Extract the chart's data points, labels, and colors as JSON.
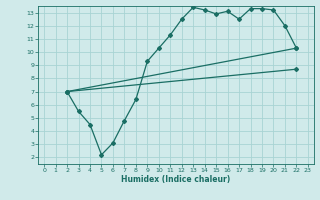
{
  "bg_color": "#d0eaea",
  "grid_color": "#a8d4d4",
  "line_color": "#1a6e64",
  "xlabel": "Humidex (Indice chaleur)",
  "xlim": [
    -0.5,
    23.5
  ],
  "ylim": [
    1.5,
    13.5
  ],
  "xticks": [
    0,
    1,
    2,
    3,
    4,
    5,
    6,
    7,
    8,
    9,
    10,
    11,
    12,
    13,
    14,
    15,
    16,
    17,
    18,
    19,
    20,
    21,
    22,
    23
  ],
  "yticks": [
    2,
    3,
    4,
    5,
    6,
    7,
    8,
    9,
    10,
    11,
    12,
    13
  ],
  "line1_x": [
    2,
    3,
    4,
    5,
    6,
    7,
    8,
    9,
    10,
    11,
    12,
    13,
    14,
    15,
    16,
    17,
    18,
    19,
    20,
    21,
    22
  ],
  "line1_y": [
    7.0,
    5.5,
    4.5,
    2.2,
    3.1,
    4.8,
    6.4,
    9.3,
    10.3,
    11.3,
    12.5,
    13.4,
    13.2,
    12.9,
    13.1,
    12.5,
    13.3,
    13.3,
    13.2,
    12.0,
    10.3
  ],
  "line2_x": [
    2,
    22
  ],
  "line2_y": [
    7.0,
    8.7
  ],
  "line3_x": [
    2,
    22
  ],
  "line3_y": [
    7.0,
    10.3
  ]
}
